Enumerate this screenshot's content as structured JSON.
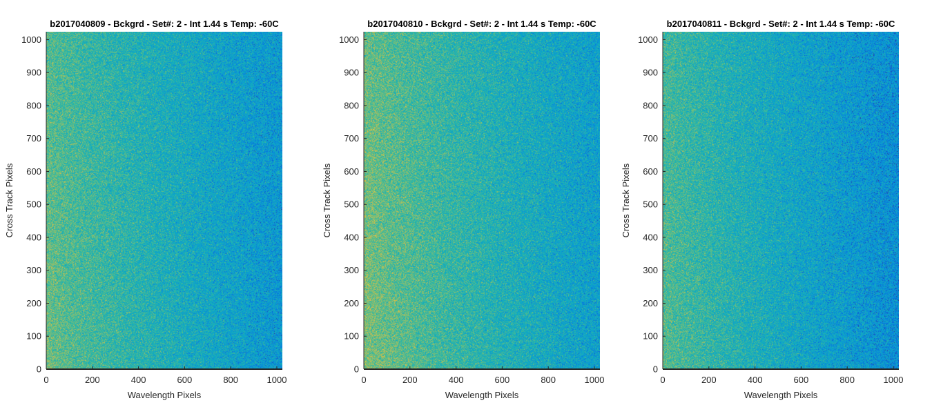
{
  "figure": {
    "background": "#ffffff",
    "axis_color": "#262626",
    "colormap": "parula",
    "colormap_visible_colors": [
      "#0da5c6",
      "#1cadb2",
      "#3ab89d",
      "#6bc082",
      "#9cc466"
    ]
  },
  "chart_data": [
    {
      "type": "heatmap",
      "title": "b2017040809 - Bckgrd - Set#: 2 - Int 1.44 s Temp: -60C",
      "xlabel": "Wavelength Pixels",
      "ylabel": "Cross Track Pixels",
      "xlim": [
        0,
        1024
      ],
      "ylim": [
        0,
        1024
      ],
      "xticks": [
        0,
        200,
        400,
        600,
        800,
        1000
      ],
      "yticks": [
        0,
        100,
        200,
        300,
        400,
        500,
        600,
        700,
        800,
        900,
        1000
      ],
      "grid": false,
      "description_of_values": {
        "pattern": "noisy background, higher (yellow-green) toward low wavelength pixels, lower (teal) toward high wavelength pixels",
        "relative_level_left": 0.62,
        "relative_level_right": 0.32
      }
    },
    {
      "type": "heatmap",
      "title": "b2017040810 - Bckgrd - Set#: 2 - Int 1.44 s Temp: -60C",
      "xlabel": "Wavelength Pixels",
      "ylabel": "Cross Track Pixels",
      "xlim": [
        0,
        1024
      ],
      "ylim": [
        0,
        1024
      ],
      "xticks": [
        0,
        200,
        400,
        600,
        800,
        1000
      ],
      "yticks": [
        0,
        100,
        200,
        300,
        400,
        500,
        600,
        700,
        800,
        900,
        1000
      ],
      "grid": false,
      "description_of_values": {
        "pattern": "noisy background, higher (yellow-green) toward low wavelength pixels, lower (teal) toward high wavelength pixels",
        "relative_level_left": 0.66,
        "relative_level_right": 0.36
      }
    },
    {
      "type": "heatmap",
      "title": "b2017040811 - Bckgrd - Set#: 2 - Int 1.44 s Temp: -60C",
      "xlabel": "Wavelength Pixels",
      "ylabel": "Cross Track Pixels",
      "xlim": [
        0,
        1024
      ],
      "ylim": [
        0,
        1024
      ],
      "xticks": [
        0,
        200,
        400,
        600,
        800,
        1000
      ],
      "yticks": [
        0,
        100,
        200,
        300,
        400,
        500,
        600,
        700,
        800,
        900,
        1000
      ],
      "grid": false,
      "description_of_values": {
        "pattern": "noisy background, higher (yellow-green) toward low wavelength pixels, lower (teal) toward high wavelength pixels",
        "relative_level_left": 0.58,
        "relative_level_right": 0.28
      }
    }
  ]
}
